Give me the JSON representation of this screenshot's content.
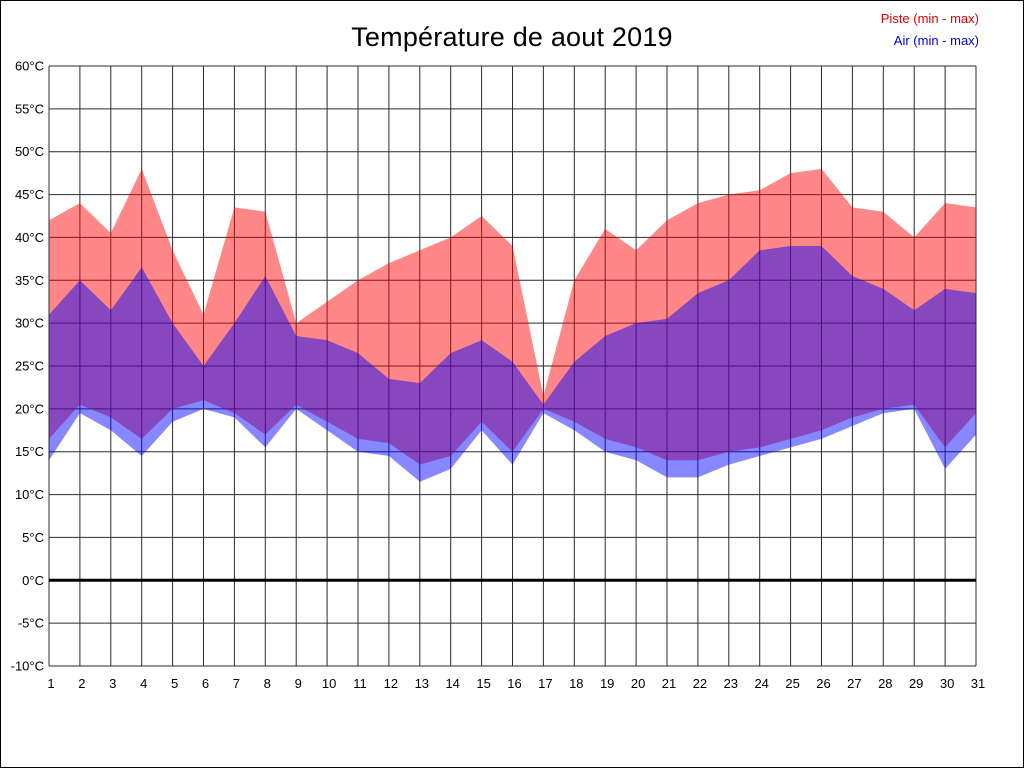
{
  "page": {
    "title": "Température de aout 2019",
    "legend": [
      {
        "id": "legend-piste",
        "label": "Piste (min - max)",
        "color": "#dd0000"
      },
      {
        "id": "legend-air",
        "label": "Air (min - max)",
        "color": "#0000dd"
      }
    ]
  },
  "chart_data": {
    "type": "area",
    "title": "Température de aout 2019",
    "x": [
      1,
      2,
      3,
      4,
      5,
      6,
      7,
      8,
      9,
      10,
      11,
      12,
      13,
      14,
      15,
      16,
      17,
      18,
      19,
      20,
      21,
      22,
      23,
      24,
      25,
      26,
      27,
      28,
      29,
      30,
      31
    ],
    "x_axis": "day of August 2019",
    "ylim": [
      -10,
      60
    ],
    "y_tick_step": 5,
    "y_tick_labels": [
      "60°C",
      "55°C",
      "50°C",
      "45°C",
      "40°C",
      "35°C",
      "30°C",
      "25°C",
      "20°C",
      "15°C",
      "10°C",
      "5°C",
      "0°C",
      "-5°C",
      "-10°C"
    ],
    "grid": true,
    "zero_line": 0,
    "legend_position": "top-right",
    "bands": [
      {
        "id": "piste-band",
        "name": "Piste (min - max)",
        "fill": "rgba(255,0,0,0.47)",
        "max": [
          42,
          44,
          40.5,
          48,
          38.5,
          31,
          43.5,
          43,
          30,
          32.5,
          35,
          37,
          38.5,
          40,
          42.5,
          39,
          21.5,
          35,
          41,
          38.5,
          42,
          44,
          45,
          45.5,
          47.5,
          48,
          43.5,
          43,
          40,
          44,
          43.5
        ],
        "min": [
          16.5,
          20.5,
          19,
          16.5,
          20,
          21,
          19.5,
          17,
          20.5,
          18.5,
          16.5,
          16,
          13.5,
          14.5,
          18.5,
          15,
          20,
          18.5,
          16.5,
          15.5,
          14,
          14,
          15,
          15.5,
          16.5,
          17.5,
          19,
          20,
          20.5,
          15.5,
          19.5
        ]
      },
      {
        "id": "air-band",
        "name": "Air (min - max)",
        "fill": "rgba(0,0,255,0.47)",
        "max": [
          31,
          35,
          31.5,
          36.5,
          30,
          25,
          30,
          35.5,
          28.5,
          28,
          26.5,
          23.5,
          23,
          26.5,
          28,
          25.5,
          20.5,
          25.5,
          28.5,
          30,
          30.5,
          33.5,
          35,
          38.5,
          39,
          39,
          35.5,
          34,
          31.5,
          34,
          33.5
        ],
        "min": [
          14,
          19.5,
          17.5,
          14.5,
          18.5,
          20,
          19,
          15.5,
          20,
          17.5,
          15,
          14.5,
          11.5,
          13,
          17.5,
          13.5,
          19.5,
          17.5,
          15,
          14,
          12,
          12,
          13.5,
          14.5,
          15.5,
          16.5,
          18,
          19.5,
          20,
          13,
          17
        ]
      }
    ]
  }
}
